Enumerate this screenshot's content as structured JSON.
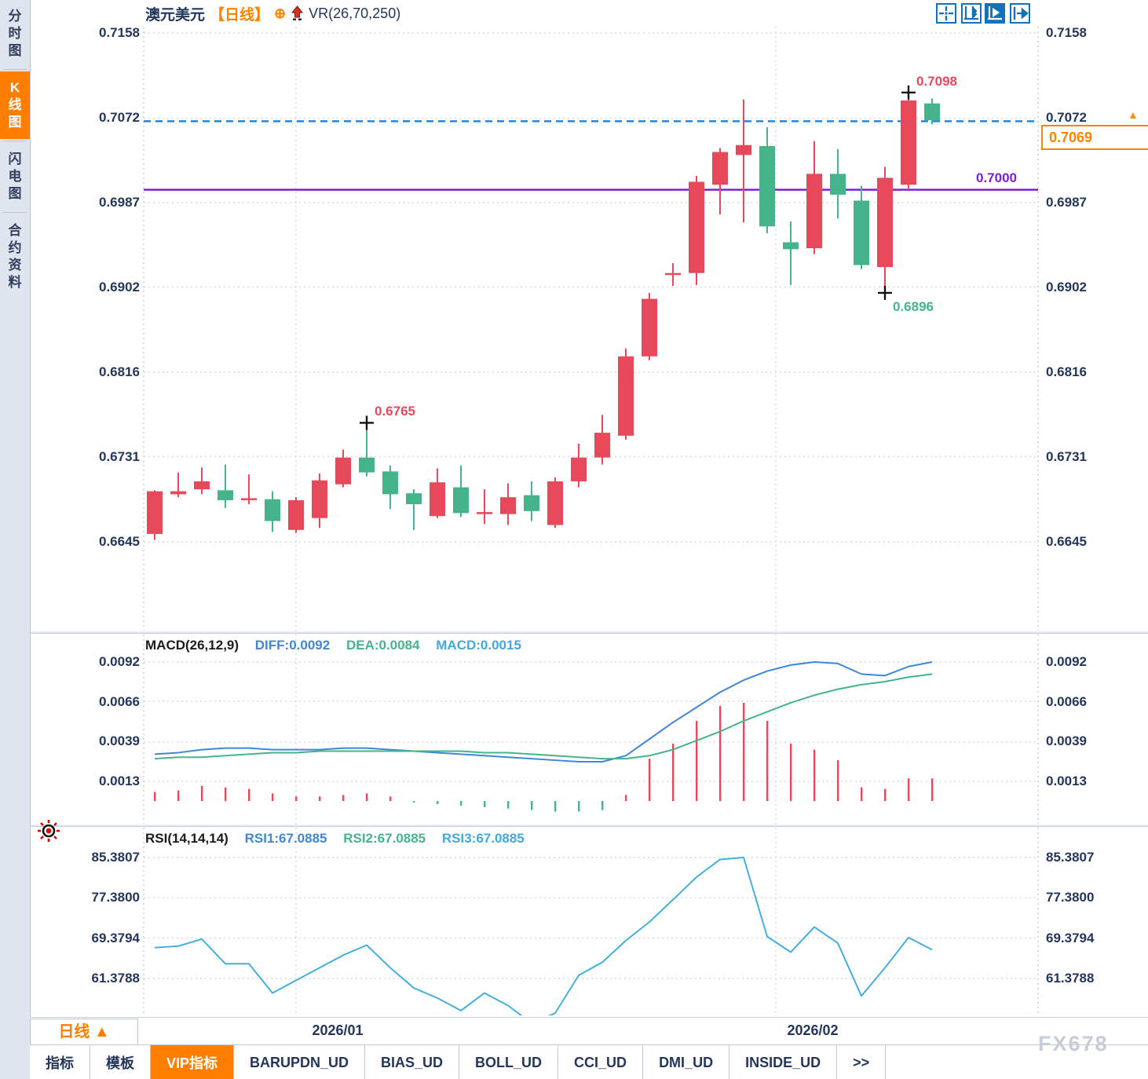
{
  "sidebar": {
    "items": [
      {
        "label": "分时图",
        "active": false
      },
      {
        "label": "K线图",
        "active": true
      },
      {
        "label": "闪电图",
        "active": false
      },
      {
        "label": "合约资料",
        "active": false
      }
    ]
  },
  "header": {
    "instrument": "澳元美元",
    "period_tag": "【日线】",
    "indicator": "VR(26,70,250)",
    "icons": [
      "target-circle-icon",
      "up-arrow-icon",
      "pan-crosshair-icon",
      "axis-range-icon",
      "auto-scale-icon",
      "goto-latest-icon"
    ]
  },
  "price_axis": {
    "values": [
      "0.7158",
      "0.7072",
      "0.6987",
      "0.6902",
      "0.6816",
      "0.6731",
      "0.6645"
    ]
  },
  "overlays": {
    "current_price": "0.7069",
    "hline_label": "0.7000",
    "high_label": "0.7098",
    "low_label": "0.6896",
    "swing_high_label": "0.6765",
    "up_marker": "▲"
  },
  "macd_panel": {
    "title": "MACD(26,12,9)",
    "diff_label": "DIFF:0.0092",
    "dea_label": "DEA:0.0084",
    "macd_label": "MACD:0.0015",
    "axis": [
      "0.0092",
      "0.0066",
      "0.0039",
      "0.0013"
    ]
  },
  "rsi_panel": {
    "title": "RSI(14,14,14)",
    "rsi1_label": "RSI1:67.0885",
    "rsi2_label": "RSI2:67.0885",
    "rsi3_label": "RSI3:67.0885",
    "axis": [
      "85.3807",
      "77.3800",
      "69.3794",
      "61.3788"
    ]
  },
  "time_axis": {
    "period_box": "日线 ▲",
    "labels": [
      "2026/01",
      "2026/02"
    ]
  },
  "bottom_tabs": [
    {
      "label": "指标",
      "active": false
    },
    {
      "label": "模板",
      "active": false
    },
    {
      "label": "VIP指标",
      "active": true
    },
    {
      "label": "BARUPDN_UD",
      "active": false
    },
    {
      "label": "BIAS_UD",
      "active": false
    },
    {
      "label": "BOLL_UD",
      "active": false
    },
    {
      "label": "CCI_UD",
      "active": false
    },
    {
      "label": "DMI_UD",
      "active": false
    },
    {
      "label": "INSIDE_UD",
      "active": false
    },
    {
      "label": ">>",
      "active": false
    }
  ],
  "watermark": "FX678",
  "colors": {
    "up": "#e8495a",
    "down": "#45b48a",
    "diff_line": "#3f87d9",
    "dea_line": "#45b48a",
    "macd_label": "#41a9dd",
    "rsi_line": "#45aee0",
    "purple_line": "#7d1fd6",
    "dashed_line": "#1e88e5",
    "accent_orange": "#ff7e00",
    "axis_text": "#24365c",
    "grid": "#d6dce6"
  },
  "chart_data": [
    {
      "type": "candlestick",
      "title": "澳元美元 日线 (AUD/USD daily)",
      "ylim": [
        0.6645,
        0.7158
      ],
      "x_labels": [
        "2026/01",
        "2026/02"
      ],
      "ohlc": [
        [
          0.6653,
          0.6697,
          0.6647,
          0.6696
        ],
        [
          0.6693,
          0.6715,
          0.669,
          0.6696
        ],
        [
          0.6698,
          0.672,
          0.6693,
          0.6706
        ],
        [
          0.6697,
          0.6723,
          0.6679,
          0.6687
        ],
        [
          0.6687,
          0.6713,
          0.6683,
          0.6689
        ],
        [
          0.6688,
          0.6696,
          0.6655,
          0.6666
        ],
        [
          0.6657,
          0.669,
          0.6654,
          0.6687
        ],
        [
          0.6669,
          0.6714,
          0.6659,
          0.6707
        ],
        [
          0.6703,
          0.6738,
          0.67,
          0.673
        ],
        [
          0.673,
          0.6765,
          0.6711,
          0.6715
        ],
        [
          0.6716,
          0.6722,
          0.6678,
          0.6693
        ],
        [
          0.6694,
          0.6698,
          0.6657,
          0.6683
        ],
        [
          0.6671,
          0.6719,
          0.6669,
          0.6705
        ],
        [
          0.67,
          0.6722,
          0.667,
          0.6674
        ],
        [
          0.6673,
          0.6698,
          0.6663,
          0.6675
        ],
        [
          0.6673,
          0.6704,
          0.6662,
          0.669
        ],
        [
          0.6692,
          0.6706,
          0.6666,
          0.6676
        ],
        [
          0.6662,
          0.671,
          0.6659,
          0.6706
        ],
        [
          0.6706,
          0.6744,
          0.67,
          0.673
        ],
        [
          0.673,
          0.6773,
          0.6723,
          0.6755
        ],
        [
          0.6752,
          0.684,
          0.6748,
          0.6832
        ],
        [
          0.6832,
          0.6896,
          0.6828,
          0.689
        ],
        [
          0.6914,
          0.6926,
          0.6903,
          0.6916
        ],
        [
          0.6916,
          0.7014,
          0.6904,
          0.7008
        ],
        [
          0.7005,
          0.7042,
          0.6975,
          0.7038
        ],
        [
          0.7035,
          0.7091,
          0.6967,
          0.7045
        ],
        [
          0.7044,
          0.7063,
          0.6956,
          0.6963
        ],
        [
          0.6947,
          0.6968,
          0.6904,
          0.694
        ],
        [
          0.6941,
          0.7049,
          0.6935,
          0.7016
        ],
        [
          0.7016,
          0.7041,
          0.6971,
          0.6995
        ],
        [
          0.6989,
          0.7004,
          0.692,
          0.6924
        ],
        [
          0.6922,
          0.7023,
          0.6896,
          0.7012
        ],
        [
          0.7005,
          0.7098,
          0.7,
          0.709
        ],
        [
          0.7087,
          0.7092,
          0.7066,
          0.707
        ]
      ],
      "annotations": [
        {
          "bar": 9,
          "type": "high",
          "label": "0.6765"
        },
        {
          "bar": 31,
          "type": "low",
          "label": "0.6896"
        },
        {
          "bar": 32,
          "type": "high",
          "label": "0.7098"
        }
      ],
      "hlines": [
        {
          "value": 0.7,
          "label": "0.7000",
          "style": "solid",
          "color": "#7d1fd6"
        },
        {
          "value": 0.7069,
          "label": "0.7069",
          "style": "dashed",
          "color": "#1e88e5"
        }
      ]
    },
    {
      "type": "bar",
      "name": "MACD(26,12,9)",
      "ylim": [
        -0.0016,
        0.0105
      ],
      "axis_ticks": [
        0.0092,
        0.0066,
        0.0039,
        0.0013
      ],
      "series": [
        {
          "name": "DIFF",
          "style": "line",
          "color": "#3f87d9",
          "values": [
            0.0031,
            0.0032,
            0.0034,
            0.0035,
            0.0035,
            0.0034,
            0.0034,
            0.0034,
            0.0035,
            0.0035,
            0.0034,
            0.0033,
            0.0032,
            0.0031,
            0.003,
            0.0029,
            0.0028,
            0.0027,
            0.0026,
            0.0026,
            0.003,
            0.0041,
            0.0052,
            0.0062,
            0.0072,
            0.008,
            0.0086,
            0.009,
            0.0092,
            0.0091,
            0.0084,
            0.0083,
            0.0089,
            0.0092
          ]
        },
        {
          "name": "DEA",
          "style": "line",
          "color": "#45b48a",
          "values": [
            0.0028,
            0.0029,
            0.0029,
            0.003,
            0.0031,
            0.0032,
            0.0032,
            0.0033,
            0.0033,
            0.0033,
            0.0033,
            0.0033,
            0.0033,
            0.0033,
            0.0032,
            0.0032,
            0.0031,
            0.003,
            0.0029,
            0.0028,
            0.0028,
            0.003,
            0.0034,
            0.004,
            0.0046,
            0.0053,
            0.0059,
            0.0065,
            0.007,
            0.0074,
            0.0077,
            0.0079,
            0.0082,
            0.0084
          ]
        },
        {
          "name": "MACD_hist",
          "style": "histogram",
          "values": [
            0.0006,
            0.0007,
            0.001,
            0.0009,
            0.0008,
            0.0005,
            0.0003,
            0.0003,
            0.0004,
            0.0005,
            0.0003,
            -0.0001,
            -0.0002,
            -0.0003,
            -0.0004,
            -0.0005,
            -0.0006,
            -0.0007,
            -0.0007,
            -0.0006,
            0.0004,
            0.0028,
            0.0038,
            0.0053,
            0.0063,
            0.0065,
            0.0053,
            0.0038,
            0.0034,
            0.0027,
            0.0009,
            0.0008,
            0.0015,
            0.0015
          ]
        }
      ]
    },
    {
      "type": "line",
      "name": "RSI(14,14,14)",
      "ylim": [
        50,
        90
      ],
      "axis_ticks": [
        85.3807,
        77.38,
        69.3794,
        61.3788
      ],
      "series": [
        {
          "name": "RSI1",
          "color": "#45aee0",
          "values": [
            67.5,
            67.8,
            69.2,
            64.3,
            64.3,
            58.5,
            61.0,
            63.5,
            66.0,
            68.0,
            63.5,
            59.5,
            57.5,
            55.0,
            58.5,
            56.0,
            52.5,
            54.5,
            62.0,
            64.6,
            68.9,
            72.6,
            77.0,
            81.5,
            85.0,
            85.4,
            69.7,
            66.6,
            71.6,
            68.4,
            57.9,
            63.5,
            69.5,
            67.09
          ]
        }
      ]
    }
  ]
}
